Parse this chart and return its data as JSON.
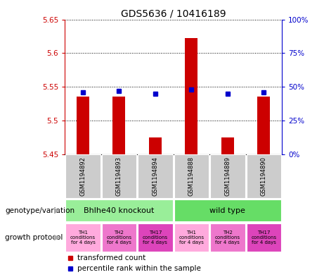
{
  "title": "GDS5636 / 10416189",
  "samples": [
    "GSM1194892",
    "GSM1194893",
    "GSM1194894",
    "GSM1194888",
    "GSM1194889",
    "GSM1194890"
  ],
  "red_values": [
    5.535,
    5.535,
    5.475,
    5.622,
    5.475,
    5.535
  ],
  "blue_values_pct": [
    46,
    47,
    45,
    48,
    45,
    46
  ],
  "ylim": [
    5.45,
    5.65
  ],
  "y_ticks": [
    5.45,
    5.5,
    5.55,
    5.6,
    5.65
  ],
  "y_right_ticks": [
    0,
    25,
    50,
    75,
    100
  ],
  "genotype_groups": [
    {
      "label": "Bhlhe40 knockout",
      "color": "#99ee99",
      "cols": [
        0,
        1,
        2
      ]
    },
    {
      "label": "wild type",
      "color": "#66dd66",
      "cols": [
        3,
        4,
        5
      ]
    }
  ],
  "growth_protocols": [
    {
      "label": "TH1\nconditions\nfor 4 days",
      "color": "#ffaadd"
    },
    {
      "label": "TH2\nconditions\nfor 4 days",
      "color": "#ee77cc"
    },
    {
      "label": "TH17\nconditions\nfor 4 days",
      "color": "#dd44bb"
    },
    {
      "label": "TH1\nconditions\nfor 4 days",
      "color": "#ffaadd"
    },
    {
      "label": "TH2\nconditions\nfor 4 days",
      "color": "#ee77cc"
    },
    {
      "label": "TH17\nconditions\nfor 4 days",
      "color": "#dd44bb"
    }
  ],
  "red_color": "#cc0000",
  "blue_color": "#0000cc",
  "sample_bg_color": "#cccccc",
  "left_label_genotype": "genotype/variation",
  "left_label_growth": "growth protocol",
  "arrow_color": "#aaaaaa",
  "bar_width": 0.35
}
